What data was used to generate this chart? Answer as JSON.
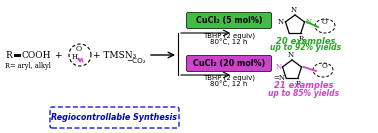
{
  "bg_color": "#ffffff",
  "box1_color": "#44bb44",
  "box1_text": "CuCl₂ (5 mol%)",
  "box1_sub1": "TBHP (2 equiv)",
  "box1_sub2": "80°C, 12 h",
  "box2_color": "#cc44cc",
  "box2_text": "CuCl₂ (20 mol%)",
  "box2_sub1": "TBHP (2 equiv)",
  "box2_sub2": "80°C, 12 h",
  "product1_examples": "20 examples",
  "product1_yield": "up to 92% yields",
  "product1_color": "#22aa22",
  "product2_examples": "21 examples",
  "product2_yield": "up to 85% yields",
  "product2_color": "#cc44cc",
  "regio_text": "Regiocontrollable Synthesis",
  "regio_color": "#0000cc",
  "bond1_color": "#22aa22",
  "bond2_color": "#cc44cc",
  "wavy_color": "#cc44cc"
}
